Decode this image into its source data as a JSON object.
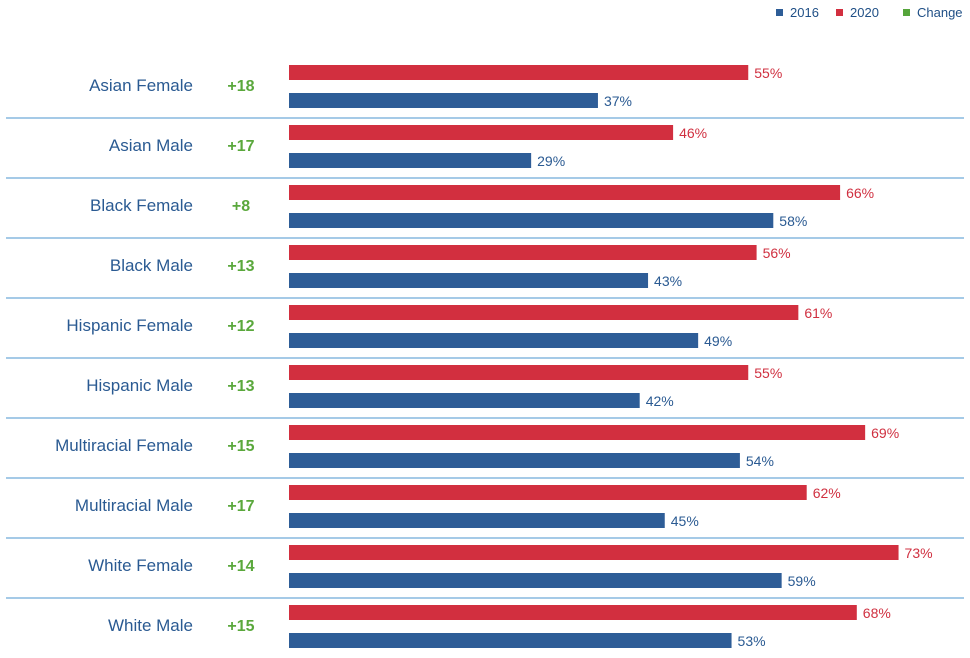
{
  "colors": {
    "y2016": "#2e5d97",
    "y2020": "#d22f3f",
    "change": "#55a53b",
    "divider": "#4b95cf"
  },
  "chart_data": {
    "type": "bar",
    "orientation": "horizontal",
    "legend": {
      "position": "top-right",
      "entries": [
        "2016",
        "2020",
        "Change"
      ]
    },
    "categories": [
      "Asian Female",
      "Asian Male",
      "Black Female",
      "Black Male",
      "Hispanic Female",
      "Hispanic Male",
      "Multiracial Female",
      "Multiracial Male",
      "White Female",
      "White Male"
    ],
    "change": [
      "+18",
      "+17",
      "+8",
      "+13",
      "+12",
      "+13",
      "+15",
      "+17",
      "+14",
      "+15"
    ],
    "series": [
      {
        "name": "2020",
        "values": [
          55,
          46,
          66,
          56,
          61,
          55,
          69,
          62,
          73,
          68
        ]
      },
      {
        "name": "2016",
        "values": [
          37,
          29,
          58,
          43,
          49,
          42,
          54,
          45,
          59,
          53
        ]
      }
    ],
    "value_suffix": "%",
    "xlim": [
      0,
      100
    ],
    "grid": false
  }
}
